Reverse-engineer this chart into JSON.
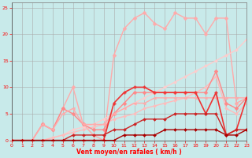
{
  "xlabel": "Vent moyen/en rafales ( km/h )",
  "bg_color": "#c8eaea",
  "grid_color": "#aaaaaa",
  "xlim": [
    0,
    23
  ],
  "ylim": [
    0,
    26
  ],
  "xticks": [
    0,
    1,
    2,
    3,
    4,
    5,
    6,
    7,
    8,
    9,
    10,
    11,
    12,
    13,
    14,
    15,
    16,
    17,
    18,
    19,
    20,
    21,
    22,
    23
  ],
  "yticks": [
    0,
    5,
    10,
    15,
    20,
    25
  ],
  "series": [
    {
      "x": [
        0,
        1,
        2,
        3,
        4,
        5,
        6,
        7,
        8,
        9,
        10,
        11,
        12,
        13,
        14,
        15,
        16,
        17,
        18,
        19,
        20,
        21,
        22,
        23
      ],
      "y": [
        0,
        0,
        0,
        3,
        2,
        6,
        10,
        3,
        1,
        0,
        16,
        21,
        23,
        24,
        22,
        21,
        24,
        23,
        23,
        20,
        23,
        23,
        7,
        8
      ],
      "color": "#ffaaaa",
      "marker": "D",
      "ms": 2.5,
      "lw": 1.0,
      "zorder": 2
    },
    {
      "x": [
        0,
        1,
        2,
        3,
        4,
        5,
        6,
        7,
        8,
        9,
        10,
        11,
        12,
        13,
        14,
        15,
        16,
        17,
        18,
        19,
        20,
        21,
        22,
        23
      ],
      "y": [
        0,
        0,
        0,
        0,
        0.5,
        1,
        2,
        2.5,
        3,
        4,
        5,
        6,
        7,
        8,
        9,
        10,
        11,
        12,
        13,
        14,
        15,
        16,
        17,
        19
      ],
      "color": "#ffcccc",
      "marker": "D",
      "ms": 2.0,
      "lw": 1.0,
      "zorder": 2
    },
    {
      "x": [
        0,
        1,
        2,
        3,
        4,
        5,
        6,
        7,
        8,
        9,
        10,
        11,
        12,
        13,
        14,
        15,
        16,
        17,
        18,
        19,
        20,
        21,
        22,
        23
      ],
      "y": [
        0,
        0,
        0,
        3,
        2,
        6,
        5,
        3,
        2,
        2,
        5,
        7,
        9,
        9,
        9,
        9,
        9,
        9,
        9,
        9,
        13,
        7,
        6,
        8
      ],
      "color": "#ff8888",
      "marker": "D",
      "ms": 2.5,
      "lw": 1.0,
      "zorder": 3
    },
    {
      "x": [
        0,
        1,
        2,
        3,
        4,
        5,
        6,
        7,
        8,
        9,
        10,
        11,
        12,
        13,
        14,
        15,
        16,
        17,
        18,
        19,
        20,
        21,
        22,
        23
      ],
      "y": [
        0,
        0,
        0,
        0,
        0,
        0,
        0,
        0,
        0,
        0,
        7,
        9,
        10,
        10,
        9,
        9,
        9,
        9,
        9,
        5,
        9,
        1,
        2,
        8
      ],
      "color": "#ee3333",
      "marker": "P",
      "ms": 2.5,
      "lw": 1.2,
      "zorder": 4
    },
    {
      "x": [
        0,
        1,
        2,
        3,
        4,
        5,
        6,
        7,
        8,
        9,
        10,
        11,
        12,
        13,
        14,
        15,
        16,
        17,
        18,
        19,
        20,
        21,
        22,
        23
      ],
      "y": [
        0,
        0,
        0,
        0,
        0.5,
        1,
        1.5,
        2,
        2.5,
        3,
        4,
        4.5,
        5,
        6,
        6.5,
        7,
        7.5,
        8,
        9,
        10,
        12,
        6,
        5,
        7
      ],
      "color": "#ffbbbb",
      "marker": "D",
      "ms": 2.0,
      "lw": 1.0,
      "zorder": 2
    },
    {
      "x": [
        0,
        1,
        2,
        3,
        4,
        5,
        6,
        7,
        8,
        9,
        10,
        11,
        12,
        13,
        14,
        15,
        16,
        17,
        18,
        19,
        20,
        21,
        22,
        23
      ],
      "y": [
        0,
        0,
        0,
        0,
        0,
        0,
        1,
        1,
        1,
        1,
        2,
        2,
        3,
        4,
        4,
        4,
        5,
        5,
        5,
        5,
        5,
        1,
        2,
        2
      ],
      "color": "#cc2222",
      "marker": "D",
      "ms": 2.0,
      "lw": 1.0,
      "zorder": 4
    },
    {
      "x": [
        0,
        1,
        2,
        3,
        4,
        5,
        6,
        7,
        8,
        9,
        10,
        11,
        12,
        13,
        14,
        15,
        16,
        17,
        18,
        19,
        20,
        21,
        22,
        23
      ],
      "y": [
        0,
        0,
        0,
        0,
        0,
        0,
        0,
        0,
        0,
        0,
        0,
        1,
        1,
        1,
        1,
        2,
        2,
        2,
        2,
        2,
        2,
        1,
        1,
        2
      ],
      "color": "#aa0000",
      "marker": "D",
      "ms": 2.0,
      "lw": 1.0,
      "zorder": 4
    },
    {
      "x": [
        0,
        1,
        2,
        3,
        4,
        5,
        6,
        7,
        8,
        9,
        10,
        11,
        12,
        13,
        14,
        15,
        16,
        17,
        18,
        19,
        20,
        21,
        22,
        23
      ],
      "y": [
        0,
        0,
        0,
        3,
        2,
        5,
        6,
        3,
        3,
        3,
        5,
        6,
        7,
        7,
        8,
        8,
        8,
        8,
        8,
        8,
        8,
        8,
        8,
        8
      ],
      "color": "#ffaaaa",
      "marker": "<",
      "ms": 2.5,
      "lw": 1.0,
      "zorder": 3
    }
  ]
}
